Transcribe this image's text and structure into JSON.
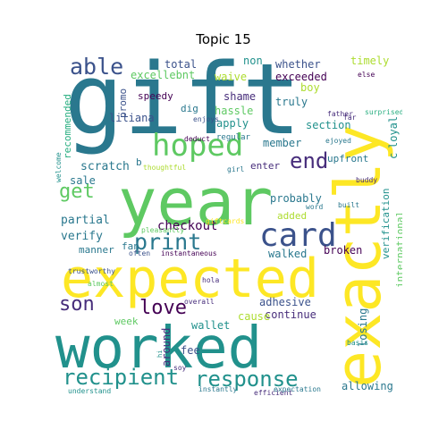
{
  "title": "Topic 15",
  "colors": {
    "yellow": "#fde725",
    "lime": "#addc30",
    "green": "#5ec962",
    "teal": "#21918c",
    "bluegreen": "#2a788e",
    "blue": "#3b528b",
    "indigo": "#472d7b",
    "purple": "#440154",
    "sea": "#28ae80"
  },
  "words": [
    "gift",
    "year",
    "exactly",
    "worked",
    "expected",
    "hoped",
    "card",
    "able",
    "response",
    "recipient",
    "print",
    "end",
    "love",
    "son",
    "get",
    "checkout",
    "sale",
    "partial",
    "verify",
    "scratch",
    "promo",
    "excellebnt",
    "total",
    "non",
    "whether",
    "timely",
    "exceeded",
    "boy",
    "truly",
    "section",
    "waive",
    "speedy",
    "dig",
    "shame",
    "hassle",
    "apply",
    "liliana",
    "enjoys",
    "deduct",
    "regular",
    "member",
    "upfront",
    "enter",
    "thoughtful",
    "girl",
    "buddy",
    "word",
    "built",
    "pleasantly",
    "giftcards",
    "probably",
    "added",
    "walked",
    "broken",
    "verification",
    "international",
    "loyal",
    "c",
    "ejoyed",
    "surprised",
    "father",
    "far",
    "else",
    "manner",
    "fan",
    "often",
    "instantaneous",
    "wallet",
    "adhesive",
    "continue",
    "cause",
    "week",
    "trustworthy",
    "almost",
    "overall",
    "hola",
    "efficient",
    "fee",
    "around",
    "losing",
    "allowing",
    "expectation",
    "instantly",
    "understand",
    "soy",
    "hi",
    "basis",
    "recommended",
    "welcome",
    "b"
  ]
}
